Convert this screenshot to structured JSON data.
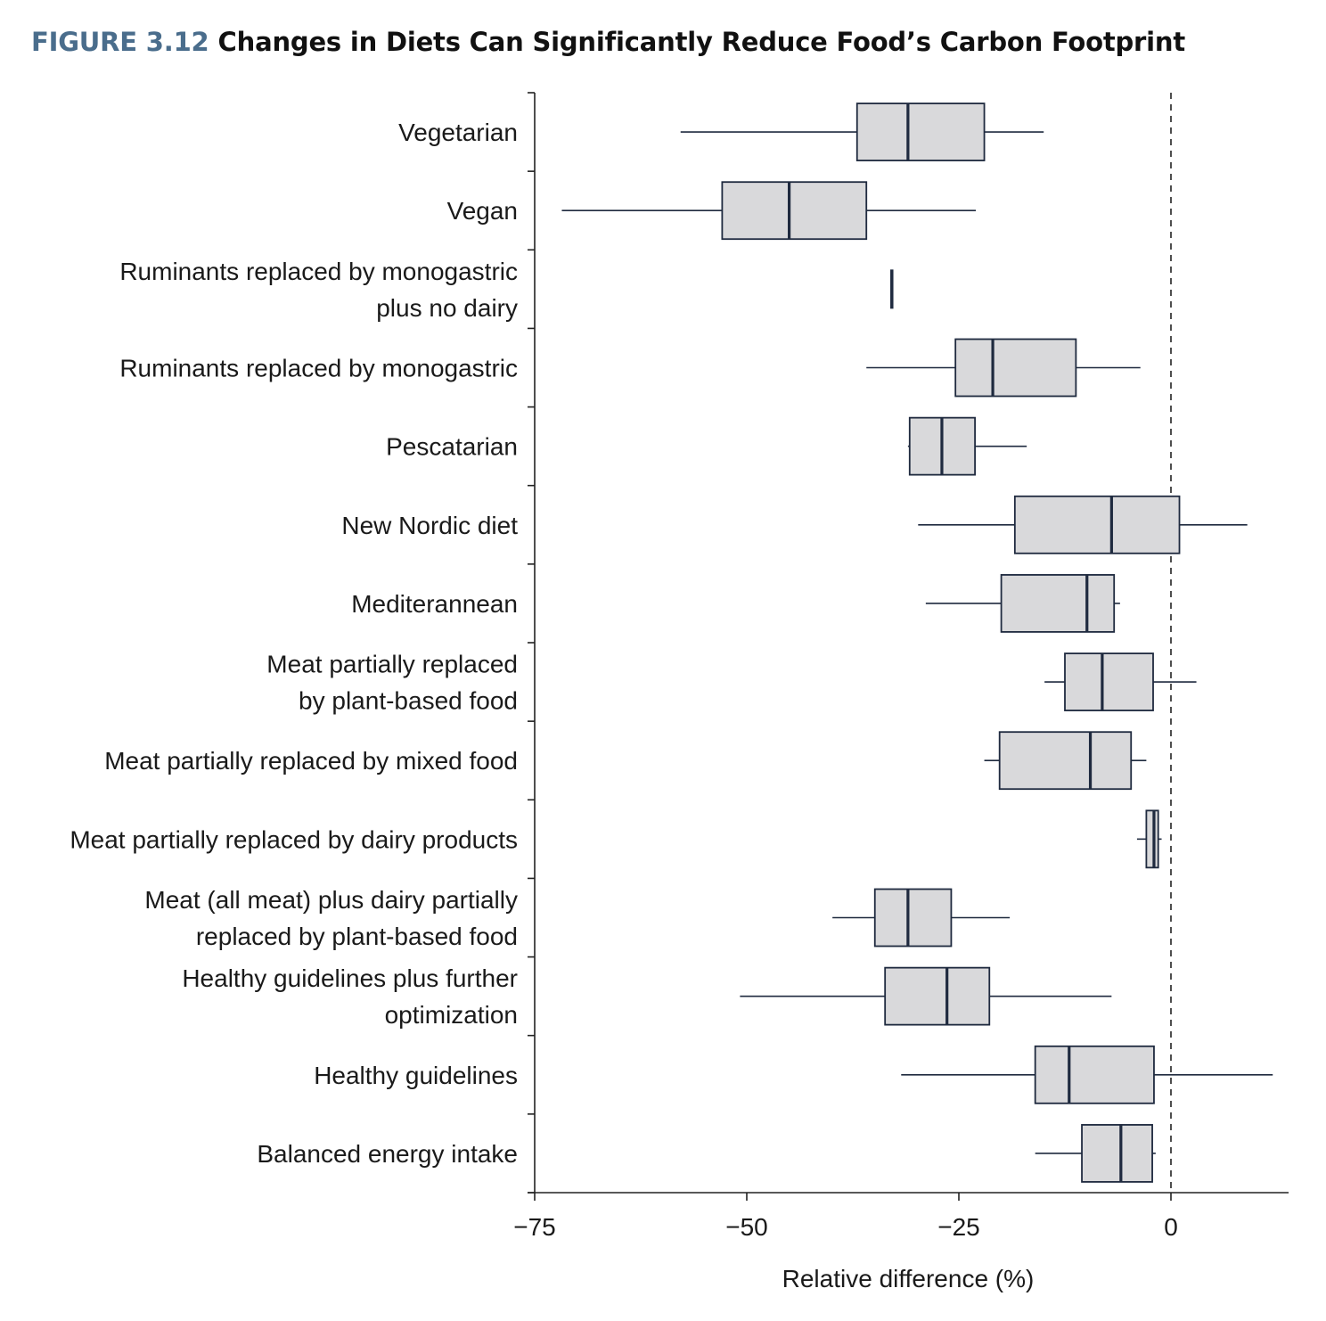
{
  "figure": {
    "number": "FIGURE 3.12",
    "title": "Changes in Diets Can Significantly Reduce Food’s Carbon Footprint"
  },
  "colors": {
    "title_accent": "#4a6d8c",
    "box_fill": "#d9d9db",
    "box_stroke": "#1f2a3f",
    "axis": "#222222"
  },
  "chart_data": {
    "type": "boxplot",
    "orientation": "horizontal",
    "title": "Changes in Diets Can Significantly Reduce Food’s Carbon Footprint",
    "xlabel": "Relative difference (%)",
    "ylabel": "",
    "xlim": [
      -75,
      14
    ],
    "xticks": [
      -75,
      -50,
      -25,
      0
    ],
    "xtick_labels": [
      "−75",
      "−50",
      "−25",
      "0"
    ],
    "reference_line": {
      "x": 0,
      "style": "dashed"
    },
    "grid": false,
    "legend": "none",
    "categories": [
      {
        "label": [
          "Vegetarian"
        ],
        "whisker_low": -57.8,
        "q1": -37.0,
        "median": -31.0,
        "q3": -22.0,
        "whisker_high": -15.0
      },
      {
        "label": [
          "Vegan"
        ],
        "whisker_low": -71.8,
        "q1": -52.9,
        "median": -45.0,
        "q3": -35.9,
        "whisker_high": -23.0
      },
      {
        "label": [
          "Ruminants replaced by monogastric",
          "plus no dairy"
        ],
        "whisker_low": -32.9,
        "q1": -32.9,
        "median": -32.9,
        "q3": -32.9,
        "whisker_high": -32.9
      },
      {
        "label": [
          "Ruminants replaced by monogastric"
        ],
        "whisker_low": -35.9,
        "q1": -25.4,
        "median": -21.0,
        "q3": -11.2,
        "whisker_high": -3.6
      },
      {
        "label": [
          "Pescatarian"
        ],
        "whisker_low": -31.0,
        "q1": -30.8,
        "median": -27.0,
        "q3": -23.1,
        "whisker_high": -17.0
      },
      {
        "label": [
          "New Nordic diet"
        ],
        "whisker_low": -29.8,
        "q1": -18.4,
        "median": -7.0,
        "q3": 1.0,
        "whisker_high": 9.0
      },
      {
        "label": [
          "Mediterannean"
        ],
        "whisker_low": -28.9,
        "q1": -20.0,
        "median": -9.9,
        "q3": -6.7,
        "whisker_high": -6.0
      },
      {
        "label": [
          "Meat partially replaced",
          "by plant-based food"
        ],
        "whisker_low": -14.9,
        "q1": -12.5,
        "median": -8.1,
        "q3": -2.1,
        "whisker_high": 3.0
      },
      {
        "label": [
          "Meat partially replaced by mixed food"
        ],
        "whisker_low": -22.0,
        "q1": -20.2,
        "median": -9.5,
        "q3": -4.7,
        "whisker_high": -2.9
      },
      {
        "label": [
          "Meat partially replaced by dairy products"
        ],
        "whisker_low": -4.0,
        "q1": -2.9,
        "median": -2.0,
        "q3": -1.5,
        "whisker_high": -1.1
      },
      {
        "label": [
          "Meat (all meat) plus dairy partially",
          "replaced by plant-based food"
        ],
        "whisker_low": -39.9,
        "q1": -34.9,
        "median": -31.0,
        "q3": -25.9,
        "whisker_high": -19.0
      },
      {
        "label": [
          "Healthy guidelines plus further",
          "optimization"
        ],
        "whisker_low": -50.8,
        "q1": -33.7,
        "median": -26.4,
        "q3": -21.4,
        "whisker_high": -7.0
      },
      {
        "label": [
          "Healthy guidelines"
        ],
        "whisker_low": -31.8,
        "q1": -16.0,
        "median": -12.0,
        "q3": -2.0,
        "whisker_high": 12.0
      },
      {
        "label": [
          "Balanced energy intake"
        ],
        "whisker_low": -16.0,
        "q1": -10.5,
        "median": -5.9,
        "q3": -2.2,
        "whisker_high": -1.8
      }
    ]
  }
}
